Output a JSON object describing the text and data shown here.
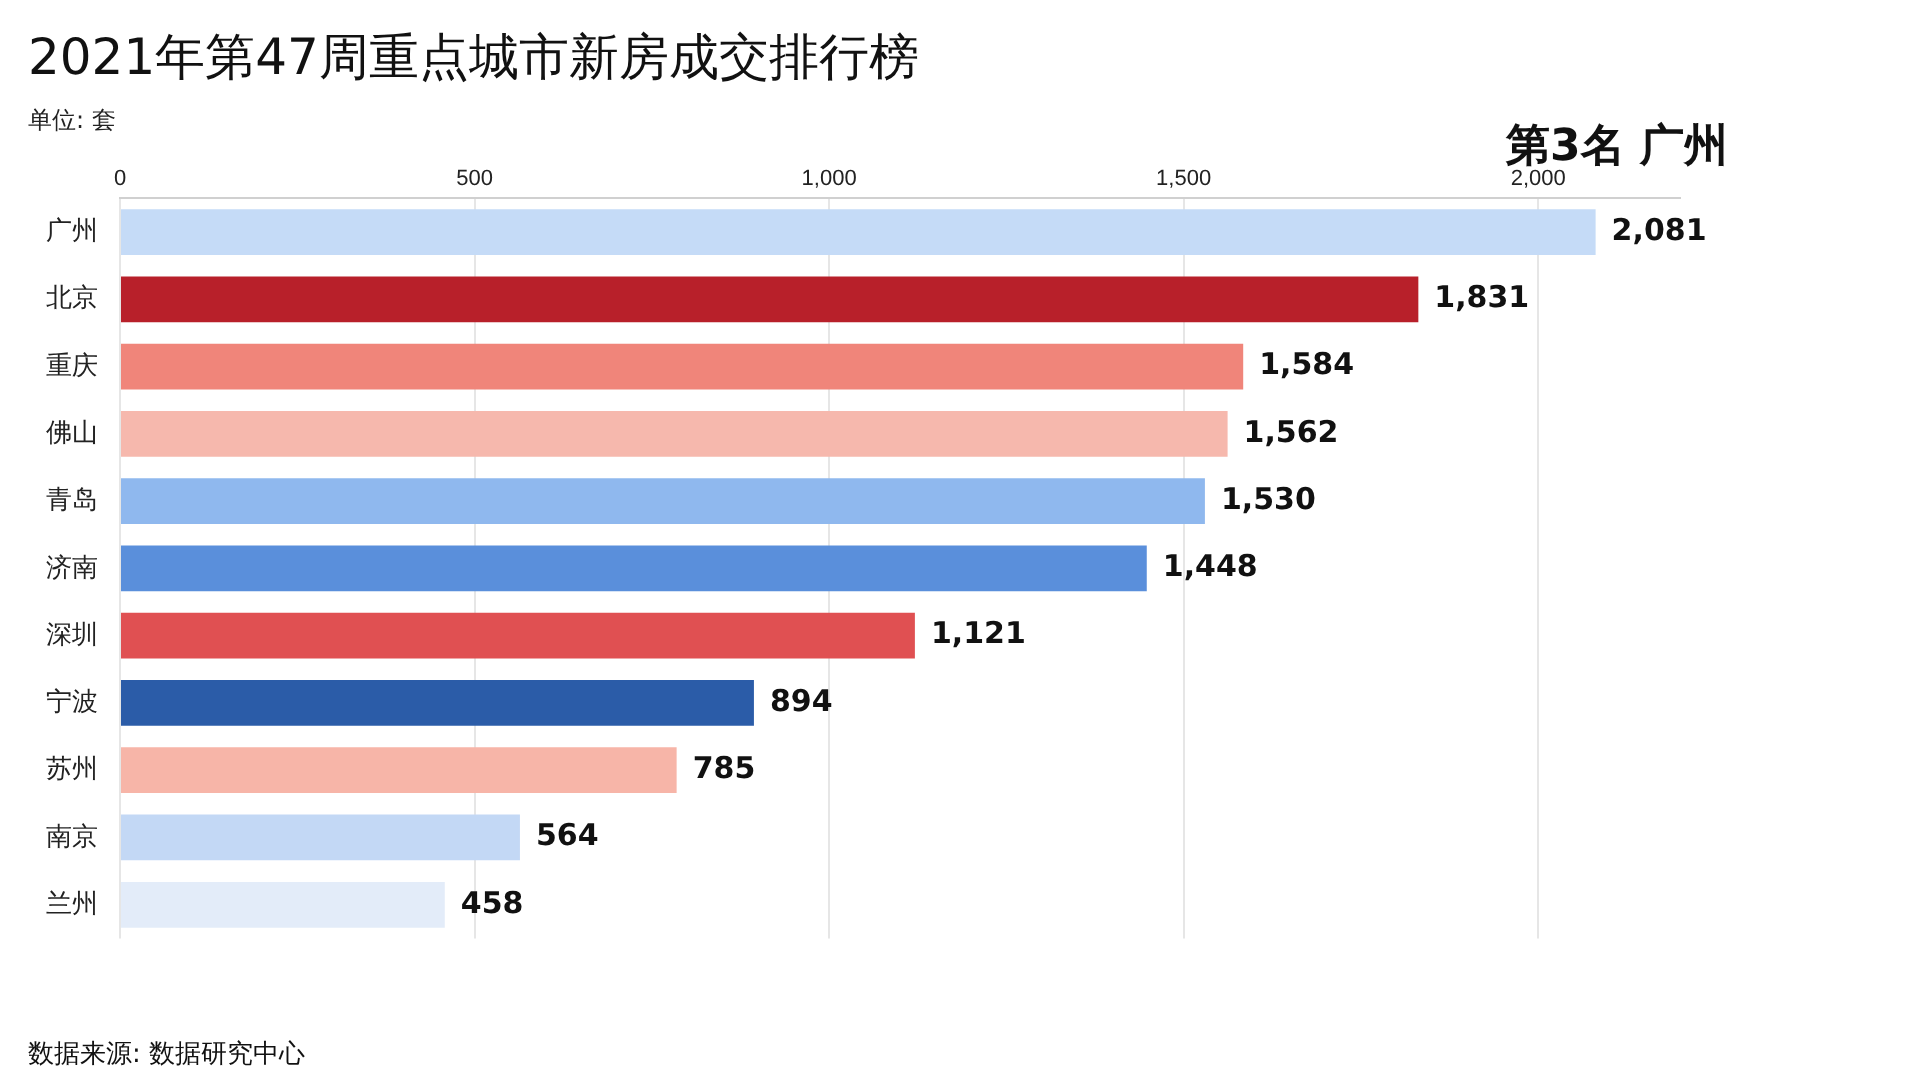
{
  "chart_data": {
    "type": "bar",
    "orientation": "horizontal",
    "title": "2021年第47周重点城市新房成交排行榜",
    "subtitle": "单位: 套",
    "categories": [
      "广州",
      "北京",
      "重庆",
      "佛山",
      "青岛",
      "济南",
      "深圳",
      "宁波",
      "苏州",
      "南京",
      "兰州"
    ],
    "values": [
      2081,
      1831,
      1584,
      1562,
      1530,
      1448,
      1121,
      894,
      785,
      564,
      458
    ],
    "colors": [
      "#c5dbf7",
      "#b8202a",
      "#f0857a",
      "#f6b8ad",
      "#8fb8ee",
      "#5a8fdb",
      "#e05052",
      "#2b5ca8",
      "#f7b5a8",
      "#c3d8f5",
      "#e3ecf9"
    ],
    "xlim": [
      0,
      2200
    ],
    "xticks": [
      0,
      {
        "value": 500,
        "label": "500"
      },
      {
        "value": 1000,
        "label": "1,000"
      },
      {
        "value": 1500,
        "label": "1,500"
      },
      {
        "value": 2000,
        "label": "2,000"
      }
    ],
    "value_labels": [
      "2,081",
      "1,831",
      "1,584",
      "1,562",
      "1,530",
      "1,448",
      "1,121",
      "894",
      "785",
      "564",
      "458"
    ],
    "grid": "x",
    "legend": false,
    "annotations": [
      "第3名 广州",
      "数据来源: 数据研究中心"
    ]
  }
}
